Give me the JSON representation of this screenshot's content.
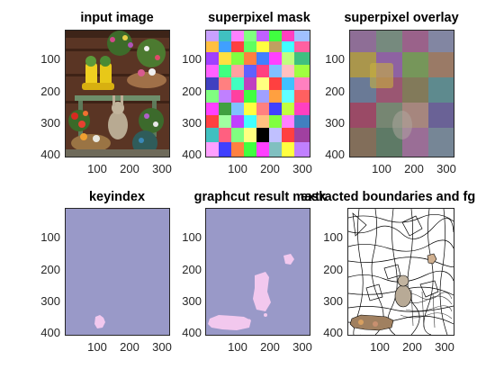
{
  "titles": {
    "p1": "input image",
    "p2": "superpixel mask",
    "p3": "superpixel overlay",
    "p4": "keyindex",
    "p5": "graphcut result mask",
    "p6": "extracted boundaries and fg"
  },
  "axes": {
    "y_ticks": [
      "100",
      "200",
      "300",
      "400"
    ],
    "x_ticks": [
      "100",
      "200",
      "300"
    ]
  },
  "colors": {
    "mask_bg": "#9999c8",
    "mask_fg": "#f2c8ee",
    "axis": "#262626"
  }
}
